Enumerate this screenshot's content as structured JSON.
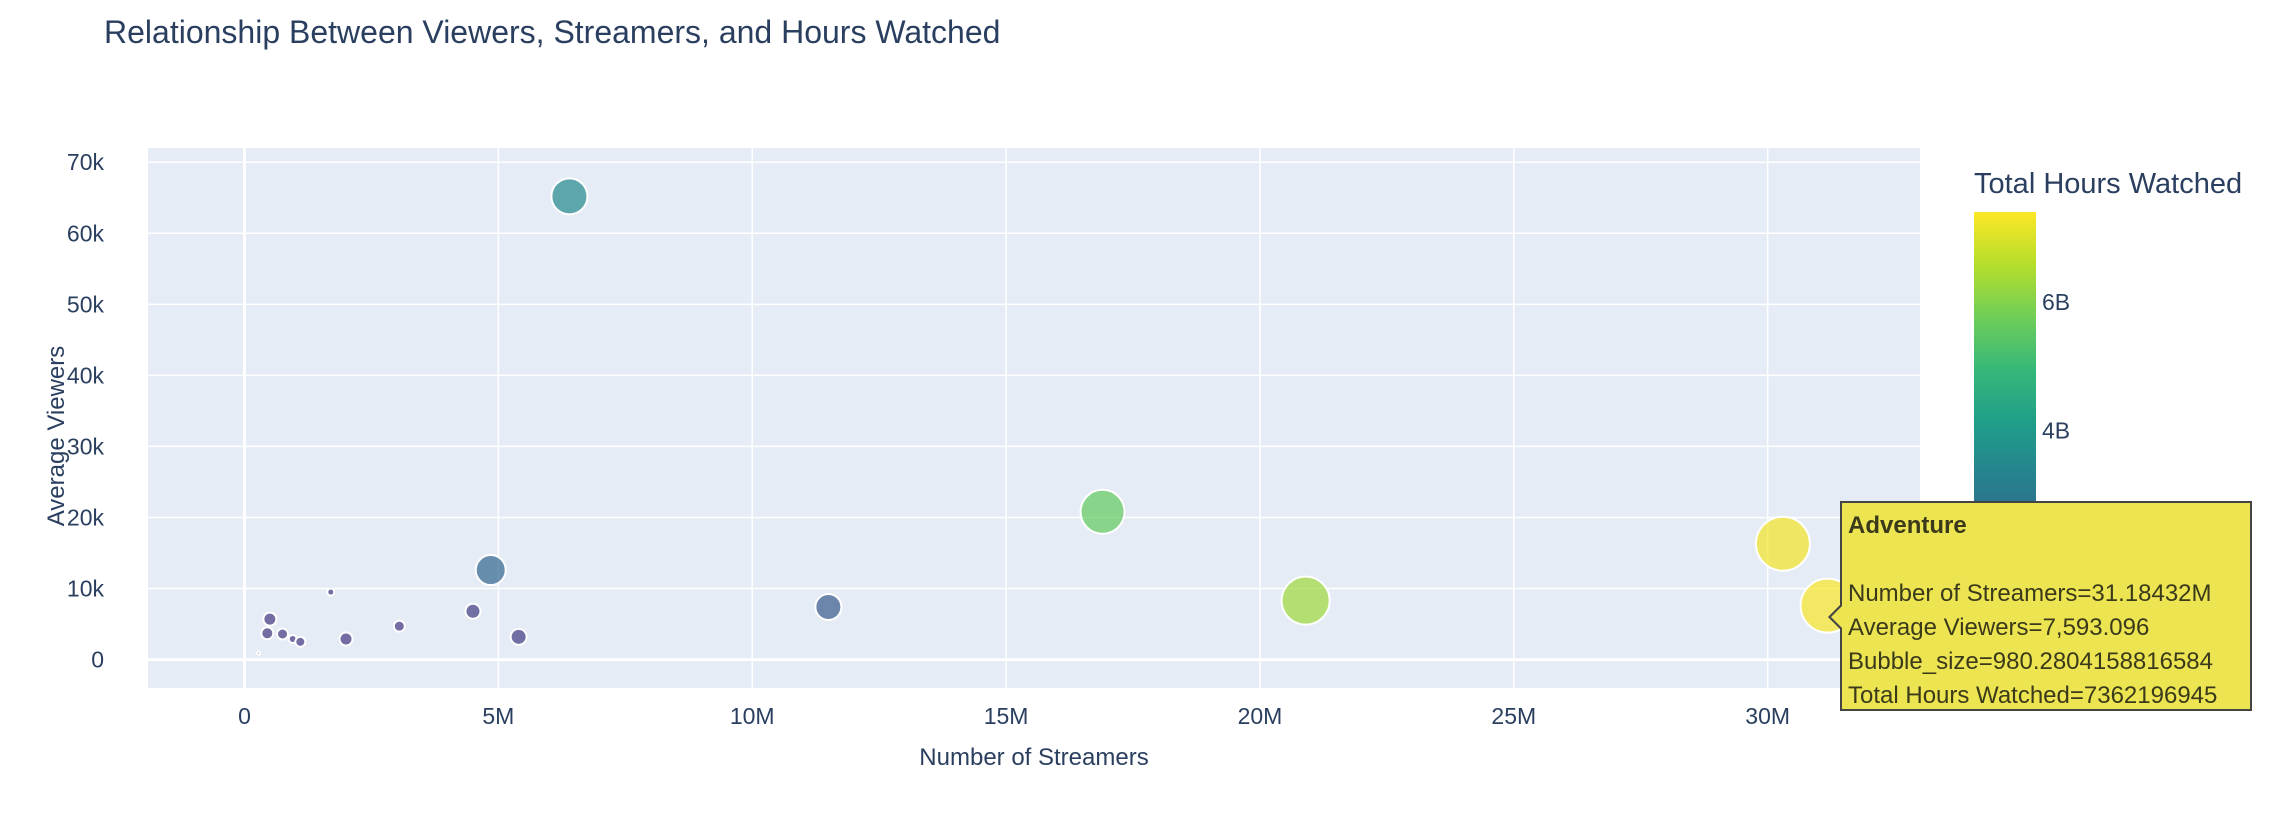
{
  "chart_data": {
    "type": "scatter",
    "title": "Relationship Between Viewers, Streamers, and Hours Watched",
    "xlabel": "Number of Streamers",
    "ylabel": "Average Viewers",
    "xlim": [
      -1900000,
      33000000
    ],
    "ylim": [
      -4000,
      72000
    ],
    "x_ticks": [
      0,
      5000000,
      10000000,
      15000000,
      20000000,
      25000000,
      30000000
    ],
    "x_tick_labels": [
      "0",
      "5M",
      "10M",
      "15M",
      "20M",
      "25M",
      "30M"
    ],
    "y_ticks": [
      0,
      10000,
      20000,
      30000,
      40000,
      50000,
      60000,
      70000
    ],
    "y_tick_labels": [
      "0",
      "10k",
      "20k",
      "30k",
      "40k",
      "50k",
      "60k",
      "70k"
    ],
    "colorbar": {
      "title": "Total Hours Watched",
      "range": [
        0,
        7400000000
      ],
      "tick_values": [
        4000000000,
        6000000000
      ],
      "tick_labels": [
        "4B",
        "6B"
      ],
      "colorscale": [
        "#440154",
        "#482878",
        "#3e4989",
        "#31688e",
        "#26828e",
        "#1f9e89",
        "#35b779",
        "#6ece58",
        "#b5de2b",
        "#fde725"
      ]
    },
    "grid": true,
    "legend": "none",
    "points": [
      {
        "x": 6400000,
        "y": 65200,
        "hours": 3500000000,
        "size": 36
      },
      {
        "x": 4850000,
        "y": 12600,
        "hours": 2400000000,
        "size": 30
      },
      {
        "x": 16900000,
        "y": 20800,
        "hours": 5600000000,
        "size": 44
      },
      {
        "x": 20900000,
        "y": 8300,
        "hours": 6300000000,
        "size": 48
      },
      {
        "x": 30300000,
        "y": 16300,
        "hours": 7300000000,
        "size": 54
      },
      {
        "x": 31180000,
        "y": 7593,
        "hours": 7362196945,
        "size": 54
      },
      {
        "x": 11500000,
        "y": 7400,
        "hours": 2100000000,
        "size": 26
      },
      {
        "x": 5400000,
        "y": 3200,
        "hours": 1300000000,
        "size": 16
      },
      {
        "x": 4500000,
        "y": 6800,
        "hours": 1300000000,
        "size": 15
      },
      {
        "x": 3050000,
        "y": 4700,
        "hours": 1200000000,
        "size": 11
      },
      {
        "x": 2000000,
        "y": 2900,
        "hours": 1200000000,
        "size": 13
      },
      {
        "x": 1700000,
        "y": 9500,
        "hours": 1200000000,
        "size": 7
      },
      {
        "x": 500000,
        "y": 5700,
        "hours": 1200000000,
        "size": 13
      },
      {
        "x": 450000,
        "y": 3700,
        "hours": 1200000000,
        "size": 12
      },
      {
        "x": 750000,
        "y": 3600,
        "hours": 1200000000,
        "size": 11
      },
      {
        "x": 950000,
        "y": 2900,
        "hours": 1200000000,
        "size": 8
      },
      {
        "x": 1100000,
        "y": 2500,
        "hours": 1200000000,
        "size": 10
      },
      {
        "x": 280000,
        "y": 900,
        "hours": 300000000,
        "size": 3
      }
    ]
  },
  "tooltip": {
    "name": "Adventure",
    "lines": [
      "Number of Streamers=31.18432M",
      "Average Viewers=7,593.096",
      "Bubble_size=980.2804158816584",
      "Total Hours Watched=7362196945"
    ]
  }
}
